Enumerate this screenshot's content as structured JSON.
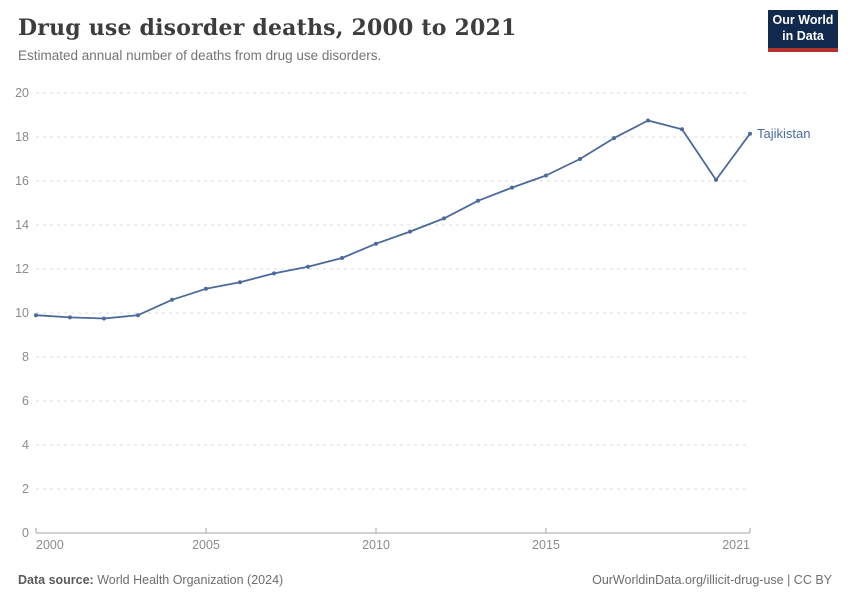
{
  "header": {
    "title": "Drug use disorder deaths, 2000 to 2021",
    "subtitle": "Estimated annual number of deaths from drug use disorders."
  },
  "logo": {
    "line1": "Our World",
    "line2": "in Data",
    "bg_color": "#12294e",
    "accent_color": "#b0342b"
  },
  "chart_data": {
    "type": "line",
    "title": "Drug use disorder deaths, 2000 to 2021",
    "xlabel": "",
    "ylabel": "",
    "ylim": [
      0,
      20
    ],
    "yticks": [
      0,
      2,
      4,
      6,
      8,
      10,
      12,
      14,
      16,
      18,
      20
    ],
    "xticks": [
      2000,
      2005,
      2010,
      2015,
      2021
    ],
    "grid": "horizontal-dashed",
    "legend": "end-of-line-label",
    "series": [
      {
        "name": "Tajikistan",
        "color": "#4C6A9C",
        "x": [
          2000,
          2001,
          2002,
          2003,
          2004,
          2005,
          2006,
          2007,
          2008,
          2009,
          2010,
          2011,
          2012,
          2013,
          2014,
          2015,
          2016,
          2017,
          2018,
          2019,
          2020,
          2021
        ],
        "values": [
          9.9,
          9.8,
          9.75,
          9.9,
          10.6,
          11.1,
          11.4,
          11.8,
          12.1,
          12.5,
          13.15,
          13.7,
          14.3,
          15.1,
          15.7,
          16.25,
          17.0,
          17.95,
          18.75,
          18.35,
          16.05,
          18.15
        ]
      }
    ]
  },
  "footer": {
    "source_label": "Data source:",
    "source_value": "World Health Organization (2024)",
    "link_text": "OurWorldinData.org/illicit-drug-use | CC BY"
  },
  "colors": {
    "line": "#4C6A9C",
    "grid": "#dddddd",
    "axis": "#a3a3a3",
    "tick_label": "#8c8c8c",
    "title": "#3d3d3d",
    "subtitle": "#757575"
  }
}
